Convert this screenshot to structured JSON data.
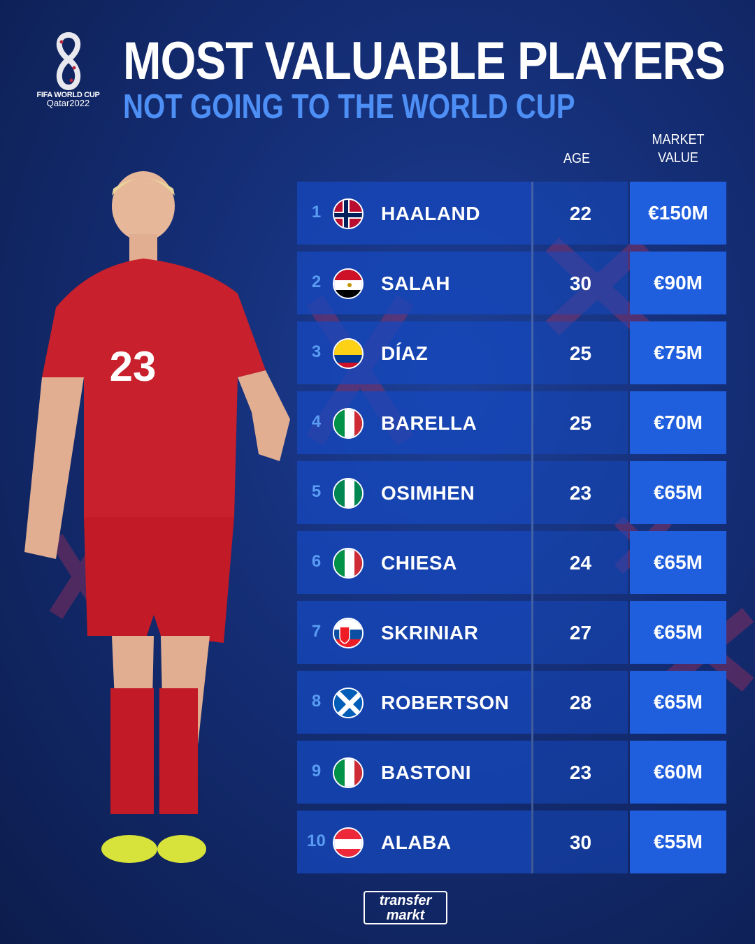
{
  "logo": {
    "line1": "FIFA WORLD CUP",
    "line2": "Qatar2022"
  },
  "title": "MOST VALUABLE PLAYERS",
  "subtitle": "NOT GOING TO THE WORLD CUP",
  "headers": {
    "age": "AGE",
    "market_value_1": "MARKET",
    "market_value_2": "VALUE"
  },
  "players": [
    {
      "rank": "1",
      "name": "HAALAND",
      "flag": "norway",
      "age": "22",
      "value": "€150M"
    },
    {
      "rank": "2",
      "name": "SALAH",
      "flag": "egypt",
      "age": "30",
      "value": "€90M"
    },
    {
      "rank": "3",
      "name": "DÍAZ",
      "flag": "colombia",
      "age": "25",
      "value": "€75M"
    },
    {
      "rank": "4",
      "name": "BARELLA",
      "flag": "italy",
      "age": "25",
      "value": "€70M"
    },
    {
      "rank": "5",
      "name": "OSIMHEN",
      "flag": "nigeria",
      "age": "23",
      "value": "€65M"
    },
    {
      "rank": "6",
      "name": "CHIESA",
      "flag": "italy",
      "age": "24",
      "value": "€65M"
    },
    {
      "rank": "7",
      "name": "SKRINIAR",
      "flag": "slovakia",
      "age": "27",
      "value": "€65M"
    },
    {
      "rank": "8",
      "name": "ROBERTSON",
      "flag": "scotland",
      "age": "28",
      "value": "€65M"
    },
    {
      "rank": "9",
      "name": "BASTONI",
      "flag": "italy",
      "age": "23",
      "value": "€60M"
    },
    {
      "rank": "10",
      "name": "ALABA",
      "flag": "austria",
      "age": "30",
      "value": "€55M"
    }
  ],
  "player_photo": {
    "shirt_number": "23"
  },
  "footer_logo": {
    "line1": "transfer",
    "line2": "markt"
  },
  "colors": {
    "background": "#142d74",
    "accent": "#4d8ff5",
    "value_cell": "#1f5fde",
    "cross": "#c0305a"
  }
}
